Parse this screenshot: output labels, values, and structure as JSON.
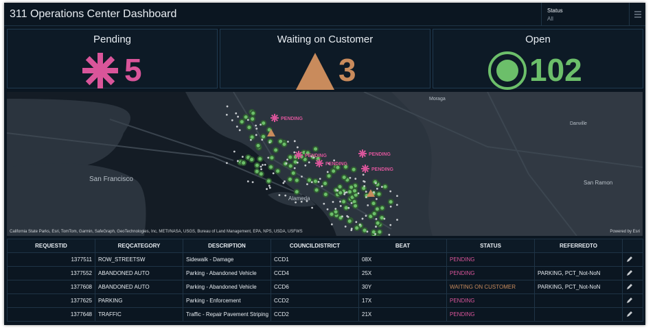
{
  "header": {
    "title": "311 Operations Center Dashboard",
    "filter_label": "Status",
    "filter_value": "All"
  },
  "cards": [
    {
      "label": "Pending",
      "value": "5",
      "color": "#d9559a"
    },
    {
      "label": "Waiting on Customer",
      "value": "3",
      "color": "#c98b5c"
    },
    {
      "label": "Open",
      "value": "102",
      "color": "#6cbf6a"
    }
  ],
  "map": {
    "places": [
      "San Francisco",
      "Alameda",
      "Moraga",
      "Danville",
      "San Ramon"
    ],
    "markers": [
      "PENDING",
      "PENDING",
      "PENDING",
      "PENDING",
      "PENDING"
    ],
    "attribution": "California State Parks, Esri, TomTom, Garmin, SafeGraph, GeoTechnologies, Inc, METI/NASA, USGS, Bureau of Land Management, EPA, NPS, USDA, USFWS",
    "powered_by": "Powered by Esri"
  },
  "table": {
    "columns": [
      "REQUESTID",
      "REQCATEGORY",
      "DESCRIPTION",
      "COUNCILDISTRICT",
      "BEAT",
      "STATUS",
      "REFERREDTO"
    ],
    "rows": [
      [
        "1377511",
        "ROW_STREETSW",
        "Sidewalk - Damage",
        "CCD1",
        "08X",
        "PENDING",
        ""
      ],
      [
        "1377552",
        "ABANDONED AUTO",
        "Parking - Abandoned Vehicle",
        "CCD4",
        "25X",
        "PENDING",
        "PARKING, PCT_Not-NoN"
      ],
      [
        "1377608",
        "ABANDONED AUTO",
        "Parking - Abandoned Vehicle",
        "CCD6",
        "30Y",
        "WAITING ON CUSTOMER",
        "PARKING, PCT_Not-NoN"
      ],
      [
        "1377625",
        "PARKING",
        "Parking - Enforcement",
        "CCD2",
        "17X",
        "PENDING",
        ""
      ],
      [
        "1377648",
        "TRAFFIC",
        "Traffic - Repair Pavement Striping",
        "CCD2",
        "21X",
        "PENDING",
        ""
      ]
    ]
  }
}
